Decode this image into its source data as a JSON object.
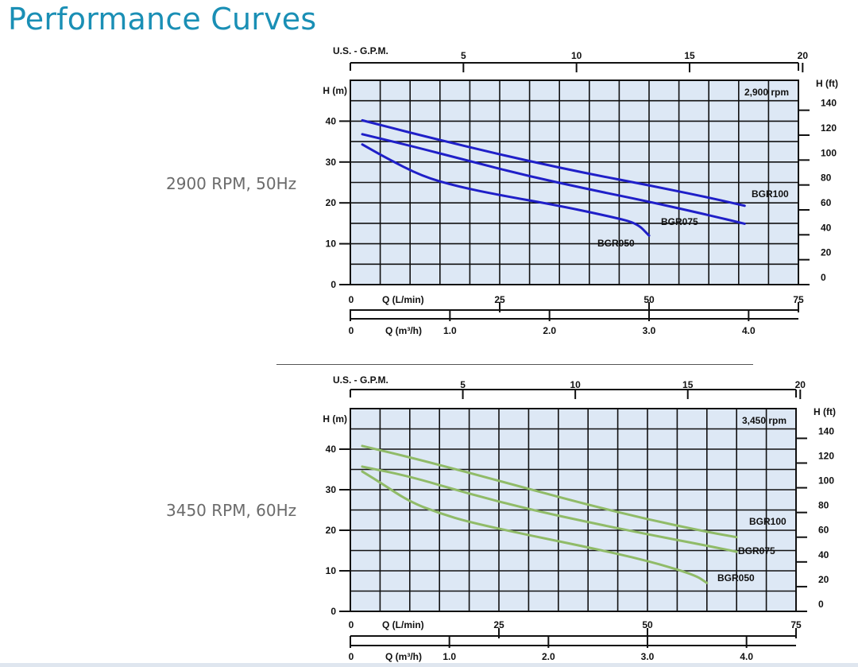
{
  "page": {
    "title": "Performance Curves"
  },
  "panels": [
    {
      "label": "2900 RPM, 50Hz"
    },
    {
      "label": "3450 RPM, 60Hz"
    }
  ],
  "colors": {
    "title": "#1a8fb5",
    "grid_fill": "#dde8f5",
    "grid_line": "#111111",
    "series_2900": "#1f1fc8",
    "series_3450": "#90bb68"
  },
  "chart_data": [
    {
      "type": "line",
      "title": "",
      "rpm_note": "2,900 rpm",
      "ylabel": "H (m)",
      "ylabel_right": "H (ft)",
      "xlabel_bottom1": "Q (L/min)",
      "xlabel_bottom2": "Q (m³/h)",
      "xlabel_top": "U.S. - G.P.M.",
      "xlim": [
        0,
        75
      ],
      "ylim": [
        0,
        50
      ],
      "grid": true,
      "y_ticks_m": [
        0,
        10,
        20,
        30,
        40
      ],
      "y_ticks_ft": [
        0,
        20,
        40,
        60,
        80,
        100,
        120,
        140
      ],
      "x_ticks_lmin": [
        0,
        25,
        50,
        75
      ],
      "x_ticks_m3h": [
        "0",
        "1.0",
        "2.0",
        "3.0",
        "4.0"
      ],
      "x_ticks_gpm": [
        5,
        10,
        15,
        20
      ],
      "series": [
        {
          "name": "BGR100",
          "x": [
            2,
            10,
            20,
            30,
            40,
            50,
            60,
            66
          ],
          "y": [
            40.2,
            37.2,
            33.6,
            30.2,
            27.1,
            24.3,
            21.3,
            19.3
          ]
        },
        {
          "name": "BGR075",
          "x": [
            2,
            10,
            20,
            30,
            40,
            50,
            60,
            66
          ],
          "y": [
            36.8,
            34.0,
            30.2,
            26.5,
            23.3,
            20.3,
            17.0,
            14.9
          ]
        },
        {
          "name": "BGR050",
          "x": [
            2,
            6,
            12,
            18,
            25,
            35,
            44,
            48,
            50
          ],
          "y": [
            34.3,
            31.0,
            26.5,
            24.0,
            21.9,
            19.3,
            16.5,
            15.0,
            12.0
          ]
        }
      ]
    },
    {
      "type": "line",
      "title": "",
      "rpm_note": "3,450 rpm",
      "ylabel": "H (m)",
      "ylabel_right": "H (ft)",
      "xlabel_bottom1": "Q (L/min)",
      "xlabel_bottom2": "Q (m³/h)",
      "xlabel_top": "U.S. - G.P.M.",
      "xlim": [
        0,
        75
      ],
      "ylim": [
        0,
        50
      ],
      "grid": true,
      "y_ticks_m": [
        0,
        10,
        20,
        30,
        40
      ],
      "y_ticks_ft": [
        0,
        20,
        40,
        60,
        80,
        100,
        120,
        140
      ],
      "x_ticks_lmin": [
        0,
        25,
        50,
        75
      ],
      "x_ticks_m3h": [
        "0",
        "1.0",
        "2.0",
        "3.0",
        "4.0"
      ],
      "x_ticks_gpm": [
        5,
        10,
        15,
        20
      ],
      "series": [
        {
          "name": "BGR100",
          "x": [
            2,
            10,
            20,
            30,
            40,
            50,
            60,
            65
          ],
          "y": [
            40.8,
            38.0,
            34.2,
            30.2,
            26.3,
            22.7,
            19.6,
            18.3
          ]
        },
        {
          "name": "BGR075",
          "x": [
            2,
            10,
            20,
            30,
            40,
            50,
            60,
            65
          ],
          "y": [
            35.7,
            33.3,
            29.0,
            25.2,
            22.0,
            19.0,
            16.2,
            14.7
          ]
        },
        {
          "name": "BGR050",
          "x": [
            2,
            5,
            10,
            15,
            20,
            30,
            40,
            50,
            58,
            60
          ],
          "y": [
            34.5,
            31.8,
            27.0,
            24.2,
            22.0,
            18.8,
            15.8,
            12.5,
            9.0,
            7.0
          ]
        }
      ]
    }
  ]
}
